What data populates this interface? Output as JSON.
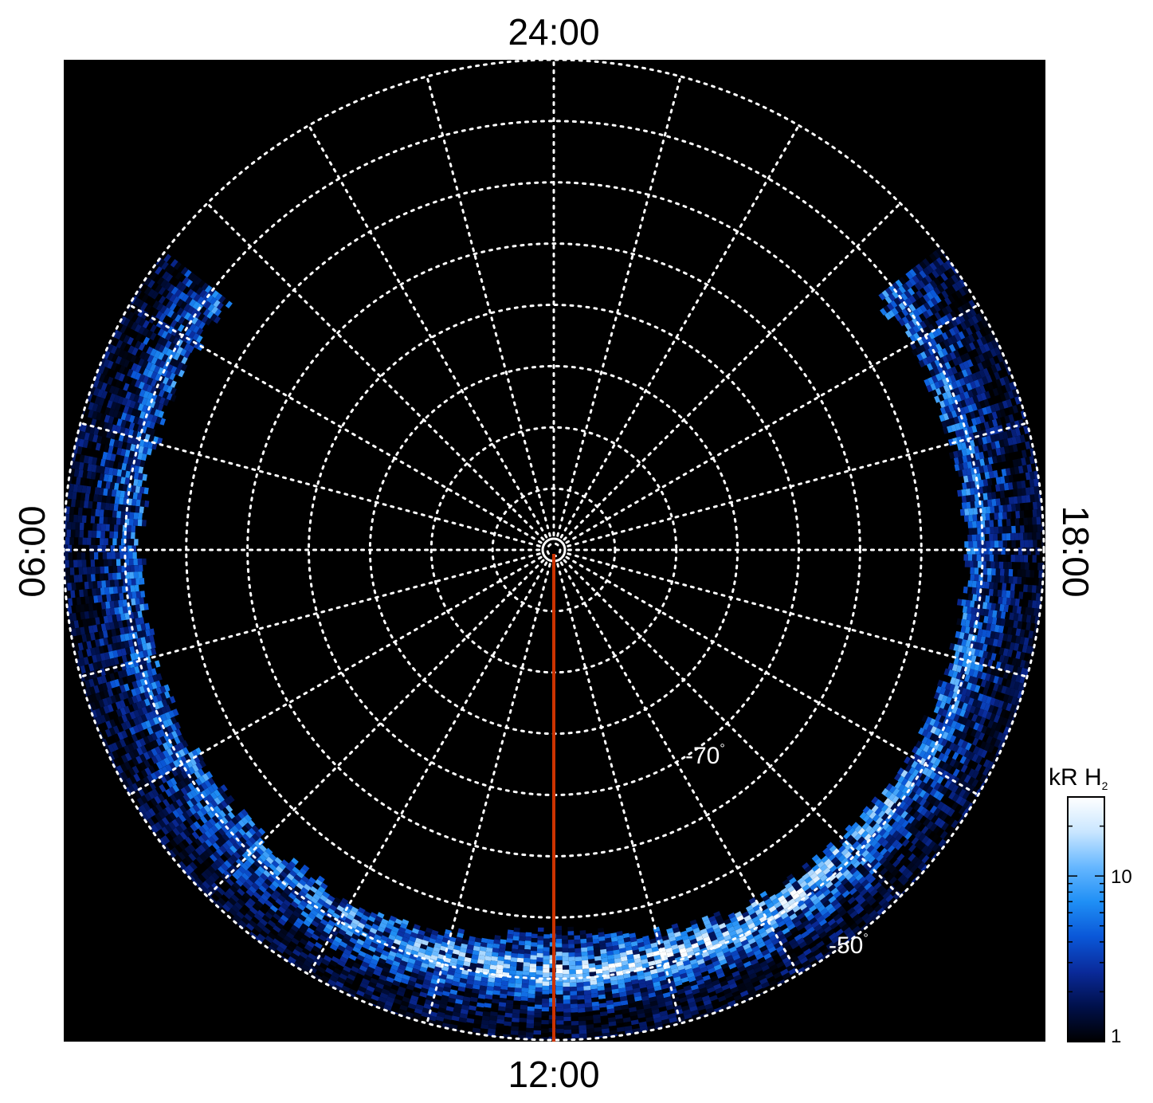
{
  "chart_data": {
    "type": "heatmap",
    "projection": "polar",
    "local_time_labels": {
      "top": "24:00",
      "bottom": "12:00",
      "left": "06:00",
      "right": "18:00"
    },
    "latitude_circles_deg": [
      -90,
      -85,
      -80,
      -75,
      -70,
      -65,
      -60,
      -55,
      -50
    ],
    "latitude_labels": [
      {
        "value": -70,
        "text": "-70"
      },
      {
        "value": -50,
        "text": "-50"
      }
    ],
    "meridian_spacing_hours": 1,
    "grid": true,
    "background_color": "#000000",
    "highlight_meridian": {
      "local_time": "12:00",
      "color": "#cc3300"
    },
    "colorbar": {
      "title": "kR H",
      "title_subscript": "2",
      "scale": "log",
      "range": [
        1,
        30
      ],
      "tick_labels": [
        "1",
        "10"
      ],
      "colormap": [
        "#000000",
        "#00104a",
        "#0a2a9a",
        "#0a57d8",
        "#1f8ff5",
        "#66b7ff",
        "#c9e6ff",
        "#ffffff"
      ]
    },
    "emission_coverage": {
      "local_time_range": [
        "03:30",
        "20:30"
      ],
      "colatitude_range_deg": [
        32,
        40
      ],
      "peak_local_time": "13:00",
      "peak_intensity_kR": 30,
      "notes_region": "brightest emission near 12:00-14:00 around -58 to -55 deg"
    }
  }
}
